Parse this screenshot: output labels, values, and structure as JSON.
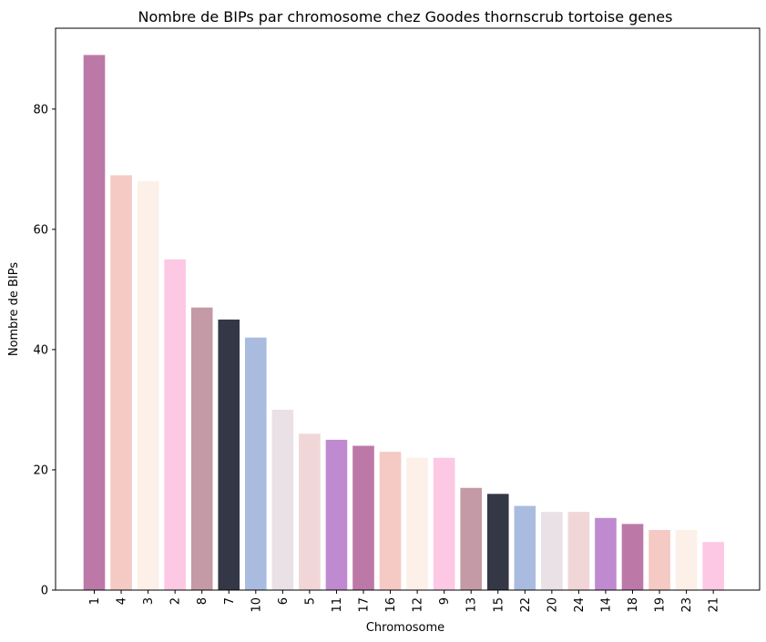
{
  "chart_data": {
    "type": "bar",
    "title": "Nombre de BIPs par chromosome chez Goodes thornscrub tortoise genes",
    "xlabel": "Chromosome",
    "ylabel": "Nombre de BIPs",
    "categories": [
      "1",
      "4",
      "3",
      "2",
      "8",
      "7",
      "10",
      "6",
      "5",
      "11",
      "17",
      "16",
      "12",
      "9",
      "13",
      "15",
      "22",
      "20",
      "24",
      "14",
      "18",
      "19",
      "23",
      "21"
    ],
    "values": [
      89,
      69,
      68,
      55,
      47,
      45,
      42,
      30,
      26,
      25,
      24,
      23,
      22,
      22,
      17,
      16,
      14,
      13,
      13,
      12,
      11,
      10,
      10,
      8
    ],
    "colors": [
      "#bc79a7",
      "#f5c9c4",
      "#fdf0e8",
      "#fdc8e4",
      "#c49aa6",
      "#333746",
      "#a9bce0",
      "#e9e1e6",
      "#f1d6d8",
      "#bf8acf",
      "#bc79a7",
      "#f5c9c4",
      "#fdf0e8",
      "#fdc8e4",
      "#c49aa6",
      "#333746",
      "#a9bce0",
      "#e9e1e6",
      "#f1d6d8",
      "#bf8acf",
      "#bc79a7",
      "#f5c9c4",
      "#fdf0e8",
      "#fdc8e4"
    ],
    "ylim": [
      0,
      93.45
    ],
    "yticks": [
      0,
      20,
      40,
      60,
      80
    ],
    "grid": false,
    "x_tick_rotation": "vertical"
  }
}
